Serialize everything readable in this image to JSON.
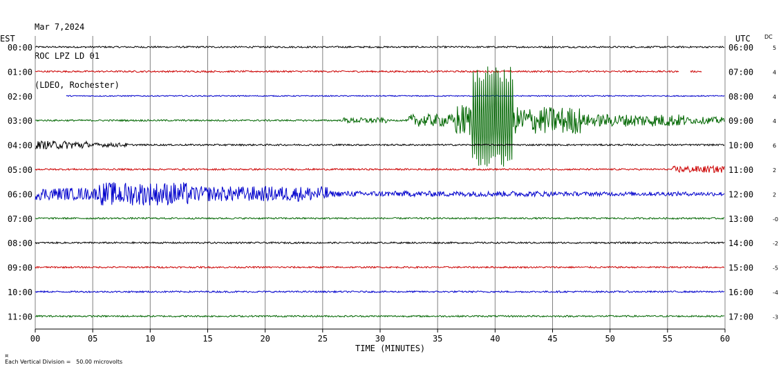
{
  "header": {
    "date": "Mar 7,2024",
    "station": "ROC LPZ LD 01",
    "network": "(LDEO, Rochester)"
  },
  "left_axis_label": "EST",
  "right_axis_label": "UTC",
  "dc_header": "DC",
  "footer": {
    "division_text": "Each Vertical Division =   50.00 microvolts"
  },
  "colors": {
    "black": "#000000",
    "red": "#cc0000",
    "blue": "#0000cc",
    "green": "#006600",
    "grid": "#808080"
  },
  "chart_data": {
    "type": "line",
    "title": "",
    "xlabel": "TIME (MINUTES)",
    "xlim": [
      0,
      60
    ],
    "x_ticks": [
      "00",
      "05",
      "10",
      "15",
      "20",
      "25",
      "30",
      "35",
      "40",
      "45",
      "50",
      "55",
      "60"
    ],
    "grid": "vertical every 5 minutes",
    "rows": [
      {
        "est": "00:00",
        "utc": "06:00",
        "dc": "5",
        "color": "black",
        "start_min": 0,
        "end_min": 60,
        "quiet_amp": 1.2
      },
      {
        "est": "01:00",
        "utc": "07:00",
        "dc": "4",
        "color": "red",
        "start_min": 0,
        "end_min": 56,
        "quiet_amp": 1.2,
        "extra_segments": [
          [
            57,
            58
          ]
        ]
      },
      {
        "est": "02:00",
        "utc": "08:00",
        "dc": "4",
        "color": "blue",
        "start_min": 2.7,
        "end_min": 60,
        "quiet_amp": 0.8
      },
      {
        "est": "03:00",
        "utc": "09:00",
        "dc": "4",
        "color": "green",
        "start_min": 0,
        "end_min": 60,
        "quiet_amp": 1.2,
        "events": [
          {
            "start": 26.8,
            "end": 30.6,
            "amp": 4
          },
          {
            "start": 32.5,
            "end": 36.5,
            "amp": 9
          },
          {
            "start": 36.5,
            "end": 38.0,
            "amp": 24
          },
          {
            "start": 38.0,
            "end": 41.6,
            "amp": 85,
            "period": 0.18
          },
          {
            "start": 41.6,
            "end": 47.5,
            "amp": 20
          },
          {
            "start": 47.5,
            "end": 56.5,
            "amp": 9
          },
          {
            "start": 56.5,
            "end": 60.0,
            "amp": 5
          }
        ]
      },
      {
        "est": "04:00",
        "utc": "10:00",
        "dc": "6",
        "color": "black",
        "start_min": 0,
        "end_min": 60,
        "quiet_amp": 1.2,
        "events": [
          {
            "start": 0,
            "end": 4.5,
            "amp": 6
          },
          {
            "start": 4.5,
            "end": 8,
            "amp": 3
          }
        ]
      },
      {
        "est": "05:00",
        "utc": "11:00",
        "dc": "2",
        "color": "red",
        "start_min": 0,
        "end_min": 60,
        "quiet_amp": 1.2,
        "events": [
          {
            "start": 55.5,
            "end": 60,
            "amp": 5
          }
        ]
      },
      {
        "est": "06:00",
        "utc": "12:00",
        "dc": "2",
        "color": "blue",
        "start_min": 0,
        "end_min": 60,
        "quiet_amp": 1.5,
        "events": [
          {
            "start": 0,
            "end": 5.5,
            "amp": 9
          },
          {
            "start": 5.5,
            "end": 13.5,
            "amp": 17
          },
          {
            "start": 13.5,
            "end": 25.5,
            "amp": 11
          },
          {
            "start": 25.5,
            "end": 45,
            "amp": 4
          },
          {
            "start": 45,
            "end": 60,
            "amp": 3
          }
        ]
      },
      {
        "est": "07:00",
        "utc": "13:00",
        "dc": "-0",
        "color": "green",
        "start_min": 0,
        "end_min": 60,
        "quiet_amp": 1.2
      },
      {
        "est": "08:00",
        "utc": "14:00",
        "dc": "-2",
        "color": "black",
        "start_min": 0,
        "end_min": 60,
        "quiet_amp": 1.2
      },
      {
        "est": "09:00",
        "utc": "15:00",
        "dc": "-5",
        "color": "red",
        "start_min": 0,
        "end_min": 60,
        "quiet_amp": 1.2
      },
      {
        "est": "10:00",
        "utc": "16:00",
        "dc": "-4",
        "color": "blue",
        "start_min": 0,
        "end_min": 60,
        "quiet_amp": 1.2
      },
      {
        "est": "11:00",
        "utc": "17:00",
        "dc": "-3",
        "color": "green",
        "start_min": 0,
        "end_min": 60,
        "quiet_amp": 1.2
      }
    ]
  }
}
